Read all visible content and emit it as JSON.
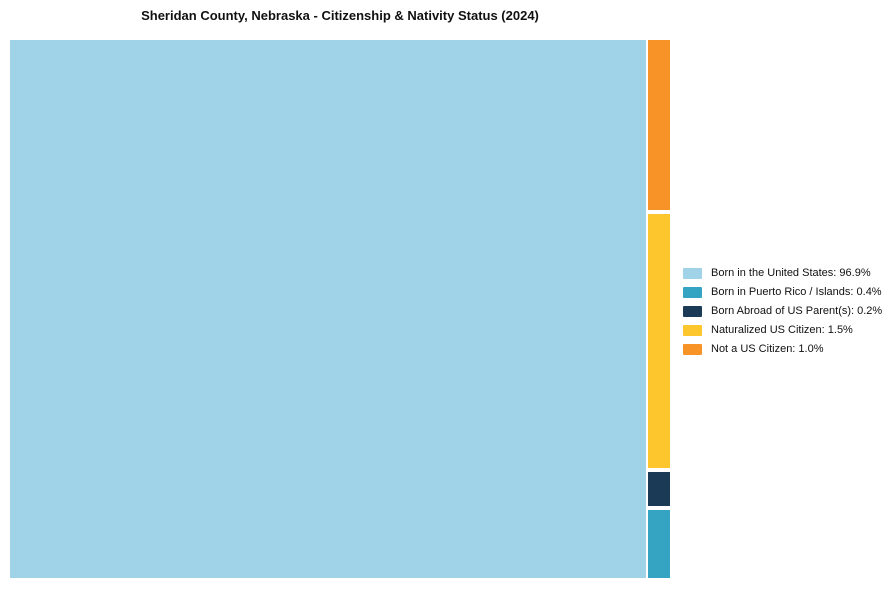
{
  "chart_data": {
    "type": "treemap",
    "title": "Sheridan County, Nebraska - Citizenship & Nativity Status (2024)",
    "legend_position": "right",
    "total_unit": "%",
    "segments": [
      {
        "label": "Born in the United States",
        "value": 96.9,
        "display": "Born in the United States: 96.9%",
        "color": "#a0d3e8"
      },
      {
        "label": "Born in Puerto Rico / Islands",
        "value": 0.4,
        "display": "Born in Puerto Rico / Islands: 0.4%",
        "color": "#35a4c3"
      },
      {
        "label": "Born Abroad of US Parent(s)",
        "value": 0.2,
        "display": "Born Abroad of US Parent(s): 0.2%",
        "color": "#1b3a55"
      },
      {
        "label": "Naturalized US Citizen",
        "value": 1.5,
        "display": "Naturalized US Citizen: 1.5%",
        "color": "#fcc62c"
      },
      {
        "label": "Not a US Citizen",
        "value": 1.0,
        "display": "Not a US Citizen: 1.0%",
        "color": "#f79327"
      }
    ]
  }
}
